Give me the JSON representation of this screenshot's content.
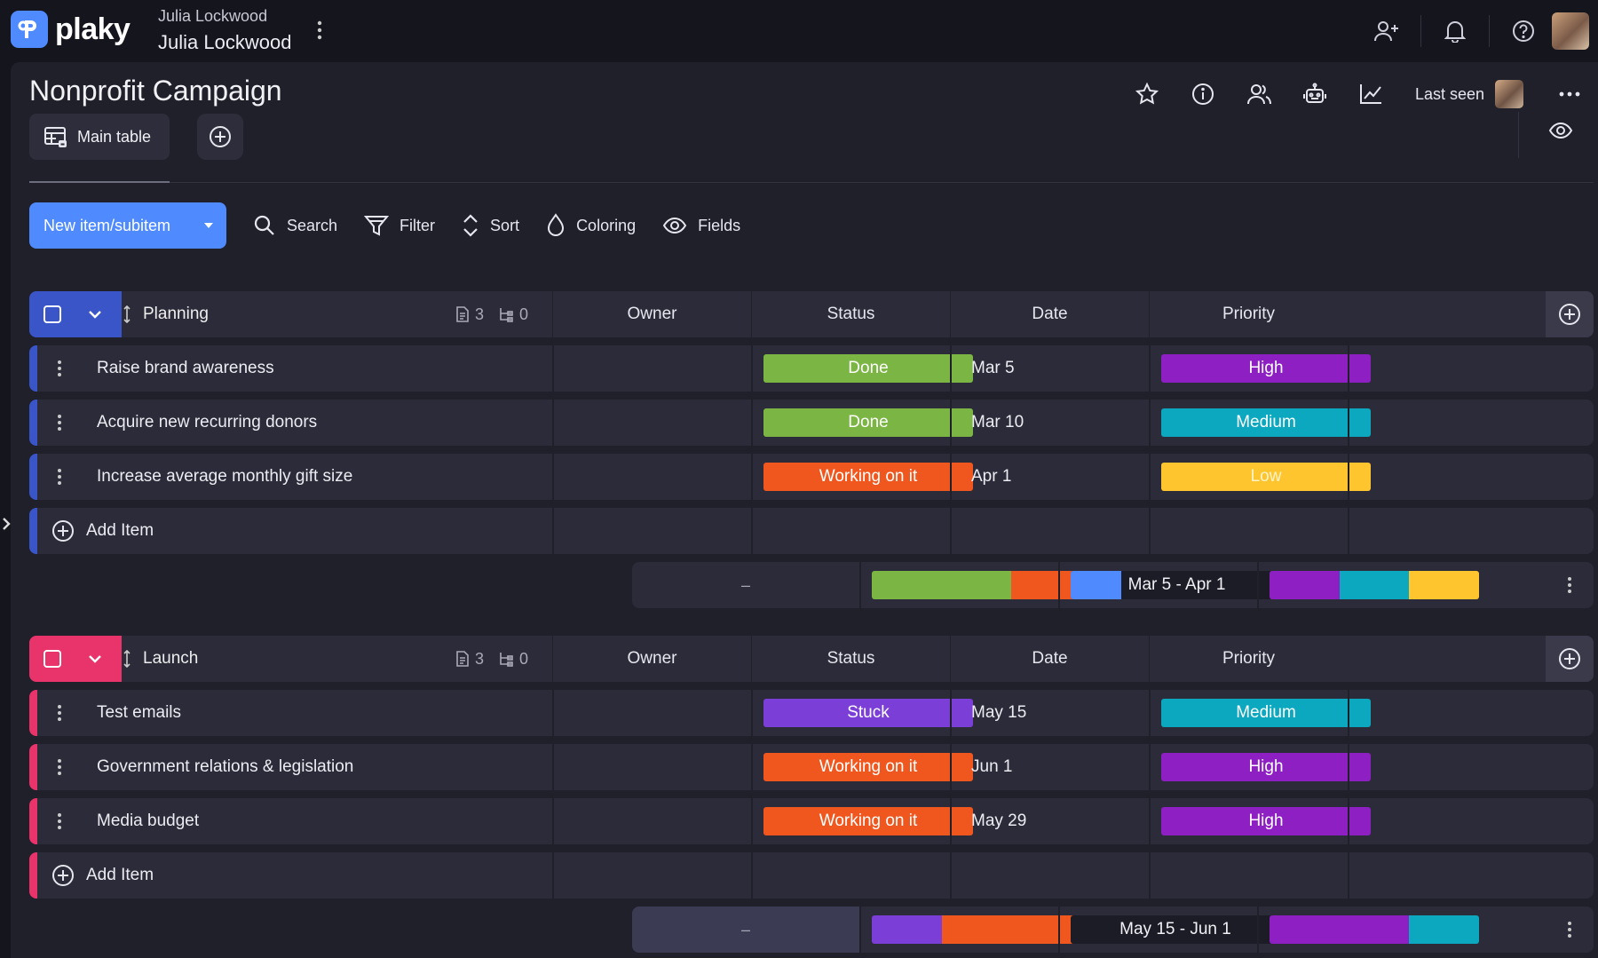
{
  "app": {
    "logo_text": "plaky"
  },
  "workspace": {
    "owner_small": "Julia Lockwood",
    "owner_name": "Julia Lockwood"
  },
  "board": {
    "title": "Nonprofit Campaign",
    "last_seen_label": "Last seen"
  },
  "views": {
    "main_table_label": "Main table"
  },
  "toolbar": {
    "new_item_label": "New item/subitem",
    "search_label": "Search",
    "filter_label": "Filter",
    "sort_label": "Sort",
    "coloring_label": "Coloring",
    "fields_label": "Fields"
  },
  "columns": {
    "owner": "Owner",
    "status": "Status",
    "date": "Date",
    "priority": "Priority"
  },
  "colors": {
    "accent_blue": "#4f8bff",
    "planning_accent": "#3a55c8",
    "launch_accent": "#e8336b",
    "done": "#7bb544",
    "working": "#f0571e",
    "stuck": "#7b3ed6",
    "high": "#8e1fc2",
    "medium": "#0ca8bf",
    "low": "#ffc52e"
  },
  "groups": [
    {
      "name": "Planning",
      "item_count": "3",
      "subitem_count": "0",
      "accent": "#3a55c8",
      "items": [
        {
          "name": "Raise brand awareness",
          "status": "Done",
          "status_color": "#7bb544",
          "date": "Mar 5",
          "priority": "High",
          "priority_color": "#8e1fc2",
          "priority_text_color": "#ffffff"
        },
        {
          "name": "Acquire new recurring donors",
          "status": "Done",
          "status_color": "#7bb544",
          "date": "Mar 10",
          "priority": "Medium",
          "priority_color": "#0ca8bf",
          "priority_text_color": "#ffffff"
        },
        {
          "name": "Increase average monthly gift size",
          "status": "Working on it",
          "status_color": "#f0571e",
          "date": "Apr 1",
          "priority": "Low",
          "priority_color": "#ffc52e",
          "priority_text_color": "#fff3c9"
        }
      ],
      "add_item_label": "Add Item",
      "summary": {
        "owner": "–",
        "status_distribution": [
          {
            "color": "#7bb544",
            "fraction": 0.667
          },
          {
            "color": "#f0571e",
            "fraction": 0.333
          }
        ],
        "date_range": "Mar 5 - Apr 1",
        "date_range_elapsed_fraction": 0.24,
        "priority_distribution": [
          {
            "color": "#8e1fc2",
            "fraction": 0.333
          },
          {
            "color": "#0ca8bf",
            "fraction": 0.334
          },
          {
            "color": "#ffc52e",
            "fraction": 0.333
          }
        ]
      }
    },
    {
      "name": "Launch",
      "item_count": "3",
      "subitem_count": "0",
      "accent": "#e8336b",
      "items": [
        {
          "name": "Test emails",
          "status": "Stuck",
          "status_color": "#7b3ed6",
          "date": "May 15",
          "priority": "Medium",
          "priority_color": "#0ca8bf",
          "priority_text_color": "#ffffff"
        },
        {
          "name": "Government relations & legislation",
          "status": "Working on it",
          "status_color": "#f0571e",
          "date": "Jun 1",
          "priority": "High",
          "priority_color": "#8e1fc2",
          "priority_text_color": "#ffffff"
        },
        {
          "name": "Media budget",
          "status": "Working on it",
          "status_color": "#f0571e",
          "date": "May 29",
          "priority": "High",
          "priority_color": "#8e1fc2",
          "priority_text_color": "#ffffff"
        }
      ],
      "add_item_label": "Add Item",
      "summary": {
        "owner": "–",
        "status_distribution": [
          {
            "color": "#7b3ed6",
            "fraction": 0.333
          },
          {
            "color": "#f0571e",
            "fraction": 0.667
          }
        ],
        "date_range": "May 15 - Jun 1",
        "date_range_elapsed_fraction": 0,
        "priority_distribution": [
          {
            "color": "#8e1fc2",
            "fraction": 0.667
          },
          {
            "color": "#0ca8bf",
            "fraction": 0.333
          }
        ]
      }
    }
  ]
}
